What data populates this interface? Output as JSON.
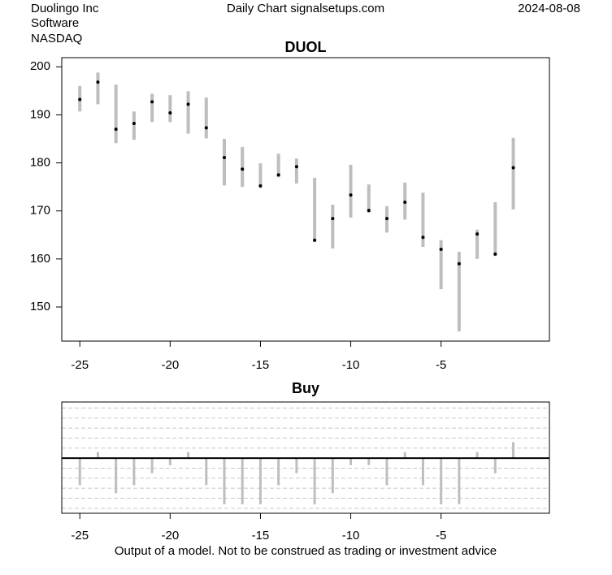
{
  "header": {
    "company": "Duolingo Inc",
    "sector": "Software",
    "exchange": "NASDAQ",
    "source": "Daily Chart signalsetups.com",
    "date": "2024-08-08"
  },
  "footer": "Output of a model. Not to be construed as trading or investment advice",
  "chart_data": [
    {
      "type": "range",
      "title": "DUOL",
      "color": "#bebebe",
      "close_color": "#000000",
      "x": [
        -25,
        -24,
        -23,
        -22,
        -21,
        -20,
        -19,
        -18,
        -17,
        -16,
        -15,
        -14,
        -13,
        -12,
        -11,
        -10,
        -9,
        -8,
        -7,
        -6,
        -5,
        -4,
        -3,
        -2,
        -1
      ],
      "high": [
        196,
        198.8,
        196.3,
        190.7,
        194.4,
        194.1,
        194.9,
        193.6,
        185,
        183.3,
        179.9,
        181.9,
        180.9,
        176.9,
        171.3,
        179.6,
        175.5,
        171,
        175.9,
        173.8,
        163.9,
        161.5,
        166.1,
        171.8,
        185.2
      ],
      "low": [
        190.7,
        192.2,
        184.1,
        184.8,
        188.5,
        188.5,
        186.1,
        185.1,
        175.3,
        175,
        174.8,
        177,
        175.7,
        163.5,
        162.2,
        168.6,
        169.6,
        165.5,
        168.2,
        162.5,
        153.7,
        144.9,
        160,
        160.6,
        170.3
      ],
      "close": [
        193.2,
        196.8,
        187,
        188.2,
        192.7,
        190.4,
        192.2,
        187.3,
        181.1,
        178.7,
        175.2,
        177.5,
        179.2,
        163.9,
        168.4,
        173.3,
        170.1,
        168.4,
        171.8,
        164.5,
        162,
        159,
        165.2,
        161,
        179
      ],
      "xlim": [
        -26,
        1
      ],
      "ylim": [
        142.9,
        201.9
      ],
      "xticks": [
        -25,
        -20,
        -15,
        -10,
        -5
      ],
      "yticks": [
        150,
        160,
        170,
        180,
        190,
        200
      ]
    },
    {
      "type": "bar",
      "title": "Buy",
      "color": "#bebebe",
      "zero_line": true,
      "x": [
        -25,
        -24,
        -23,
        -22,
        -21,
        -20,
        -19,
        -18,
        -17,
        -16,
        -15,
        -14,
        -13,
        -12,
        -11,
        -10,
        -9,
        -8,
        -7,
        -6,
        -5,
        -4,
        -3,
        -2,
        -1
      ],
      "values": [
        -2.7,
        0.6,
        -3.5,
        -2.7,
        -1.5,
        -0.7,
        0.6,
        -2.7,
        -4.6,
        -4.6,
        -4.6,
        -2.7,
        -1.5,
        -4.6,
        -3.5,
        -0.7,
        -0.7,
        -2.7,
        0.6,
        -2.7,
        -4.6,
        -4.6,
        0.6,
        -1.5,
        1.6
      ],
      "xlim": [
        -26,
        1
      ],
      "ylim": [
        -5.5,
        5.6
      ],
      "xticks": [
        -25,
        -20,
        -15,
        -10,
        -5
      ],
      "ygrid": [
        -5,
        -4,
        -3,
        -2,
        -1,
        1,
        2,
        3,
        4,
        5
      ],
      "grid": true
    }
  ]
}
